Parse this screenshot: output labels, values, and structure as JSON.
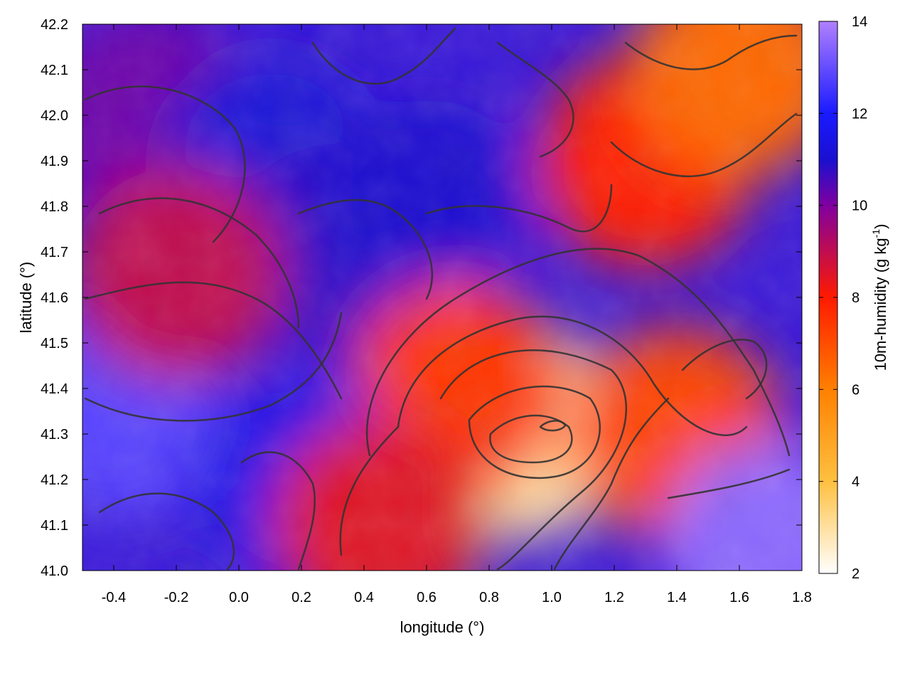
{
  "chart_data": {
    "type": "heatmap",
    "variable_label": "10m-humidity (g kg",
    "variable_unit_exponent": "-1",
    "variable_label_close": ")",
    "xlabel": "longitude (°)",
    "ylabel": "latitude (°)",
    "xlim": [
      -0.5,
      1.8
    ],
    "ylim": [
      41.0,
      42.2
    ],
    "xticks": [
      "-0.4",
      "-0.2",
      "0.0",
      "0.2",
      "0.4",
      "0.6",
      "0.8",
      "1.0",
      "1.2",
      "1.4",
      "1.6",
      "1.8"
    ],
    "xtick_values": [
      -0.4,
      -0.2,
      0.0,
      0.2,
      0.4,
      0.6,
      0.8,
      1.0,
      1.2,
      1.4,
      1.6,
      1.8
    ],
    "yticks": [
      "41.0",
      "41.1",
      "41.2",
      "41.3",
      "41.4",
      "41.5",
      "41.6",
      "41.7",
      "41.8",
      "41.9",
      "42.0",
      "42.1",
      "42.2"
    ],
    "ytick_values": [
      41.0,
      41.1,
      41.2,
      41.3,
      41.4,
      41.5,
      41.6,
      41.7,
      41.8,
      41.9,
      42.0,
      42.1,
      42.2
    ],
    "colorbar_ticks": [
      "2",
      "4",
      "6",
      "8",
      "10",
      "12",
      "14"
    ],
    "colorbar_values": [
      2,
      4,
      6,
      8,
      10,
      12,
      14
    ],
    "colorbar_range": [
      2,
      14
    ],
    "colormap_stops": [
      {
        "value": 2,
        "color": "#ffffff"
      },
      {
        "value": 4,
        "color": "#ffc040"
      },
      {
        "value": 6,
        "color": "#ff8000"
      },
      {
        "value": 8,
        "color": "#ff1a00"
      },
      {
        "value": 10,
        "color": "#8000a0"
      },
      {
        "value": 11,
        "color": "#1a10d0"
      },
      {
        "value": 12,
        "color": "#1a1aff"
      },
      {
        "value": 14,
        "color": "#b080ff"
      }
    ],
    "field_description_points": [
      {
        "lon": -0.3,
        "lat": 42.0,
        "value": 10.2
      },
      {
        "lon": 0.1,
        "lat": 41.9,
        "value": 11.2
      },
      {
        "lon": 0.3,
        "lat": 41.7,
        "value": 10.8
      },
      {
        "lon": 0.6,
        "lat": 41.8,
        "value": 11.0
      },
      {
        "lon": 1.3,
        "lat": 41.9,
        "value": 8.0
      },
      {
        "lon": 1.6,
        "lat": 42.1,
        "value": 6.5
      },
      {
        "lon": 0.9,
        "lat": 41.3,
        "value": 3.0
      },
      {
        "lon": 1.4,
        "lat": 41.3,
        "value": 7.2
      },
      {
        "lon": 0.7,
        "lat": 41.4,
        "value": 7.5
      },
      {
        "lon": -0.4,
        "lat": 41.35,
        "value": 12.8
      },
      {
        "lon": 0.2,
        "lat": 41.2,
        "value": 11.5
      },
      {
        "lon": 1.7,
        "lat": 41.05,
        "value": 13.5
      },
      {
        "lon": -0.2,
        "lat": 41.65,
        "value": 9.0
      },
      {
        "lon": 0.45,
        "lat": 41.1,
        "value": 8.5
      }
    ]
  }
}
